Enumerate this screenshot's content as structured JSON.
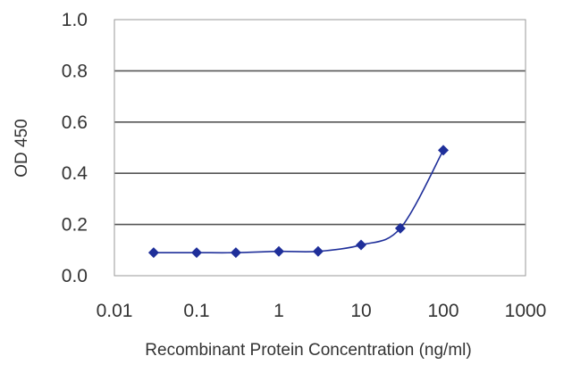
{
  "chart_data": {
    "type": "line",
    "title": "",
    "xlabel": "Recombinant Protein Concentration (ng/ml)",
    "ylabel": "OD 450",
    "x_scale": "log",
    "xlim": [
      0.01,
      1000
    ],
    "ylim": [
      0.0,
      1.0
    ],
    "x_ticks": [
      {
        "value": 0.01,
        "label": "0.01"
      },
      {
        "value": 0.1,
        "label": "0.1"
      },
      {
        "value": 1,
        "label": "1"
      },
      {
        "value": 10,
        "label": "10"
      },
      {
        "value": 100,
        "label": "100"
      },
      {
        "value": 1000,
        "label": "1000"
      }
    ],
    "y_ticks": [
      {
        "value": 0.0,
        "label": "0.0"
      },
      {
        "value": 0.2,
        "label": "0.2"
      },
      {
        "value": 0.4,
        "label": "0.4"
      },
      {
        "value": 0.6,
        "label": "0.6"
      },
      {
        "value": 0.8,
        "label": "0.8"
      },
      {
        "value": 1.0,
        "label": "1.0"
      }
    ],
    "grid": "horizontal",
    "legend": "none",
    "series": [
      {
        "x": [
          0.03,
          0.1,
          0.3,
          1,
          3,
          10,
          30,
          100
        ],
        "y": [
          0.09,
          0.09,
          0.09,
          0.095,
          0.095,
          0.12,
          0.185,
          0.49
        ],
        "color": "#1f2f9a",
        "marker": "diamond"
      }
    ]
  }
}
